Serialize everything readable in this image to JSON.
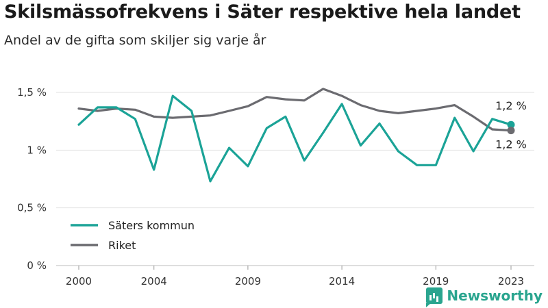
{
  "title": "Skilsmässofrekvens i Säter respektive hela landet",
  "subtitle": "Andel av de gifta som skiljer sig varje år",
  "brand": {
    "name": "Newsworthy",
    "icon": "newsworthy-logo-icon",
    "color": "#2aa58f"
  },
  "chart_data": {
    "type": "line",
    "title": "Skilsmässofrekvens i Säter respektive hela landet",
    "subtitle": "Andel av de gifta som skiljer sig varje år",
    "x": [
      2000,
      2001,
      2002,
      2003,
      2004,
      2005,
      2006,
      2007,
      2008,
      2009,
      2010,
      2011,
      2012,
      2013,
      2014,
      2015,
      2016,
      2017,
      2018,
      2019,
      2020,
      2021,
      2022,
      2023
    ],
    "x_ticks": [
      2000,
      2004,
      2009,
      2014,
      2019,
      2023
    ],
    "y_ticks": [
      0,
      0.5,
      1,
      1.5
    ],
    "y_tick_labels": [
      "0 %",
      "0,5 %",
      "1 %",
      "1,5 %"
    ],
    "ylim": [
      0,
      1.5
    ],
    "series": [
      {
        "name": "Säters kommun",
        "color": "#1ba397",
        "end_label": "1,2 %",
        "values": [
          1.22,
          1.37,
          1.37,
          1.27,
          0.83,
          1.47,
          1.34,
          0.73,
          1.02,
          0.86,
          1.19,
          1.29,
          0.91,
          1.15,
          1.4,
          1.04,
          1.23,
          0.99,
          0.87,
          0.87,
          1.28,
          0.99,
          1.27,
          1.22
        ]
      },
      {
        "name": "Riket",
        "color": "#6b6b70",
        "end_label": "1,2 %",
        "values": [
          1.36,
          1.34,
          1.36,
          1.35,
          1.29,
          1.28,
          1.29,
          1.3,
          1.34,
          1.38,
          1.46,
          1.44,
          1.43,
          1.53,
          1.47,
          1.39,
          1.34,
          1.32,
          1.34,
          1.36,
          1.39,
          1.29,
          1.18,
          1.17
        ]
      }
    ],
    "legend_position": "bottom-left",
    "grid": true
  }
}
